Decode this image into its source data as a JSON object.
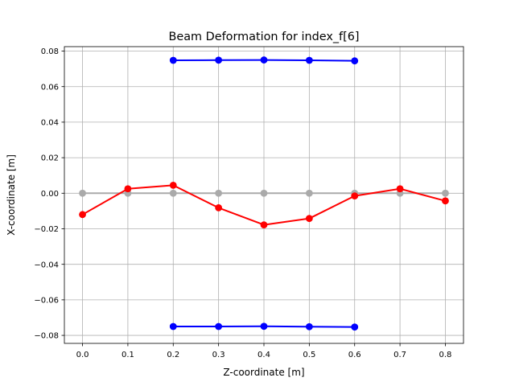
{
  "chart_data": {
    "type": "line",
    "title": "Beam Deformation for index_f[6]",
    "xlabel": "Z-coordinate [m]",
    "ylabel": "X-coordinate [m]",
    "xlim": [
      -0.04,
      0.84
    ],
    "ylim": [
      -0.0845,
      0.0825
    ],
    "xticks": [
      0.0,
      0.1,
      0.2,
      0.3,
      0.4,
      0.5,
      0.6,
      0.7,
      0.8
    ],
    "xtick_labels": [
      "0.0",
      "0.1",
      "0.2",
      "0.3",
      "0.4",
      "0.5",
      "0.6",
      "0.7",
      "0.8"
    ],
    "yticks": [
      -0.08,
      -0.06,
      -0.04,
      -0.02,
      0.0,
      0.02,
      0.04,
      0.06,
      0.08
    ],
    "ytick_labels": [
      "−0.08",
      "−0.06",
      "−0.04",
      "−0.02",
      "0.00",
      "0.02",
      "0.04",
      "0.06",
      "0.08"
    ],
    "grid": true,
    "legend": false,
    "series": [
      {
        "color": "#aaaaaa",
        "x": [
          0.0,
          0.1,
          0.2,
          0.3,
          0.4,
          0.5,
          0.6,
          0.7,
          0.8
        ],
        "y": [
          0.0,
          0.0,
          0.0,
          0.0,
          0.0,
          0.0,
          0.0,
          0.0,
          0.0
        ]
      },
      {
        "color": "#0000ff",
        "x": [
          0.2,
          0.3,
          0.4,
          0.5,
          0.6
        ],
        "y": [
          0.0748,
          0.0749,
          0.075,
          0.0748,
          0.0745
        ]
      },
      {
        "color": "#0000ff",
        "x": [
          0.2,
          0.3,
          0.4,
          0.5,
          0.6
        ],
        "y": [
          -0.075,
          -0.075,
          -0.0749,
          -0.0751,
          -0.0753
        ]
      },
      {
        "color": "#ff0000",
        "x": [
          0.0,
          0.1,
          0.2,
          0.3,
          0.4,
          0.5,
          0.6,
          0.7,
          0.8
        ],
        "y": [
          -0.012,
          0.0025,
          0.0045,
          -0.0082,
          -0.0178,
          -0.0142,
          -0.0015,
          0.0025,
          -0.0043
        ]
      }
    ]
  }
}
